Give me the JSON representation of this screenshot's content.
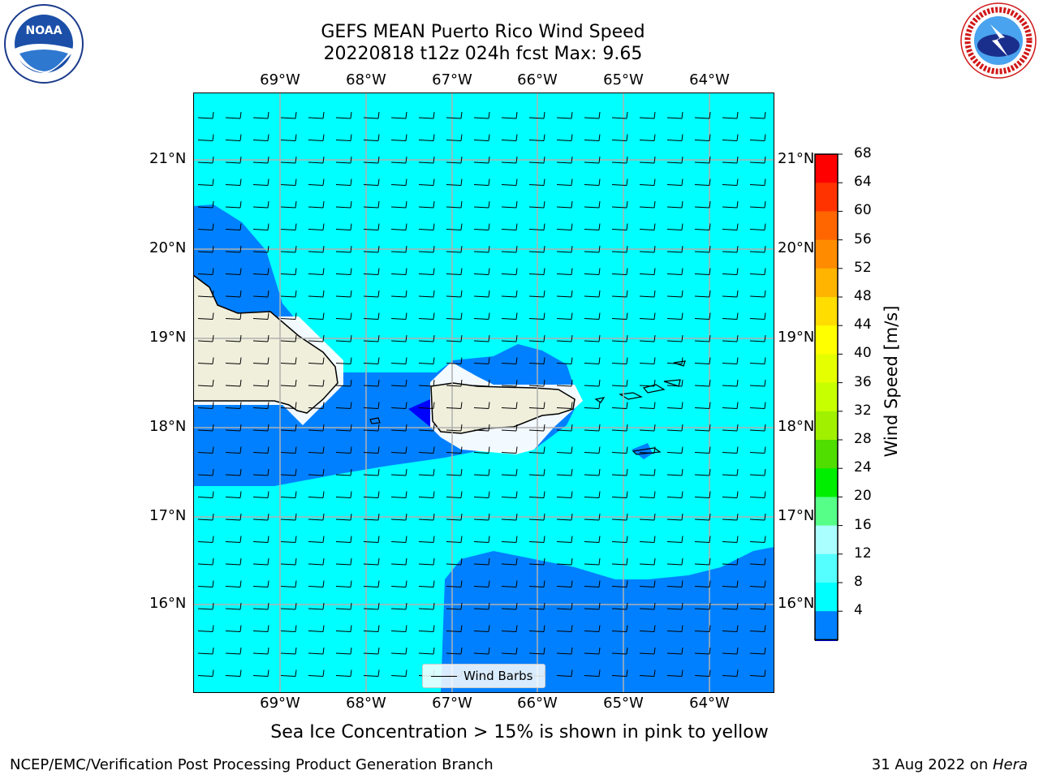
{
  "title": {
    "line1": "GEFS MEAN Puerto Rico Wind Speed",
    "line2": "20220818 t12z 024h fcst   Max: 9.65"
  },
  "logos": {
    "left": {
      "icon": "noaa-logo-icon",
      "text": "NOAA"
    },
    "right": {
      "icon": "nws-logo-icon",
      "text": "NATIONAL WEATHER SERVICE"
    }
  },
  "map": {
    "lon_labels": [
      "69°W",
      "68°W",
      "67°W",
      "66°W",
      "65°W",
      "64°W"
    ],
    "lat_labels": [
      "21°N",
      "20°N",
      "19°N",
      "18°N",
      "17°N",
      "16°N"
    ],
    "extent": {
      "lon": [
        -70.0,
        -63.25
      ],
      "lat": [
        15.05,
        21.75
      ]
    },
    "colors": {
      "ocean_high": "#00ffff",
      "ocean_low": "#0080ff",
      "ocean_lowest": "#0000ff",
      "land": "#efefdc",
      "grid": "#b0b0b0"
    },
    "legend": {
      "label": "Wind Barbs"
    },
    "barb_field": "easterly winds ~ 10 kt"
  },
  "colorbar": {
    "label": "Wind Speed [m/s]",
    "ticks": [
      "68",
      "64",
      "60",
      "56",
      "52",
      "48",
      "44",
      "40",
      "36",
      "32",
      "28",
      "24",
      "20",
      "16",
      "12",
      "8",
      "4"
    ],
    "colors": [
      "#ff0000",
      "#ff3300",
      "#ff6600",
      "#ff8c00",
      "#ffb400",
      "#ffdd00",
      "#ffff00",
      "#e6ff00",
      "#c8ff00",
      "#a0f000",
      "#50dd00",
      "#00ee00",
      "#55ff88",
      "#aaffff",
      "#55ffff",
      "#00ffff",
      "#0080ff"
    ],
    "extend_color": "#0000ff"
  },
  "caption": "Sea Ice Concentration > 15% is shown in pink to yellow",
  "footer": {
    "left": "NCEP/EMC/Verification Post Processing Product Generation Branch",
    "right_date": "31 Aug 2022 on ",
    "right_host": "Hera"
  }
}
